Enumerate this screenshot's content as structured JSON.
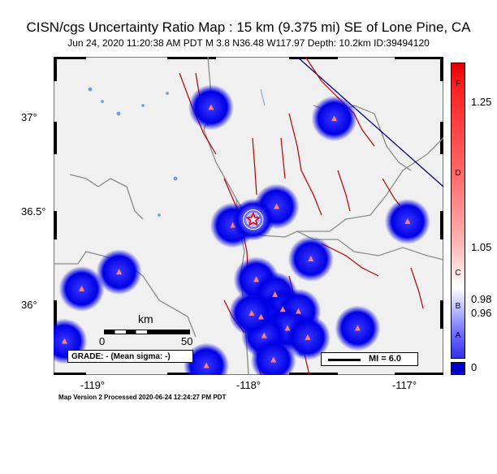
{
  "header": {
    "title": "CISN/cgs Uncertainty Ratio Map : 15 km (9.375 mi) SE of Lone Pine, CA",
    "subtitle": "Jun 24, 2020 11:20:38 AM PDT   M 3.8   N36.48 W117.97   Depth: 10.2km   ID:39494120"
  },
  "axes": {
    "x_ticks": [
      "-119°",
      "-118°",
      "-117°"
    ],
    "y_ticks": [
      "37°",
      "36.5°",
      "36°"
    ],
    "lon_range": [
      -119.25,
      -116.75
    ],
    "lat_range": [
      35.65,
      37.35
    ]
  },
  "scale": {
    "unit": "km",
    "start": "0",
    "end": "50"
  },
  "grade_text": "GRADE: - (Mean sigma: -)",
  "mi_legend": "MI = 6.0",
  "colorbar": {
    "letters": [
      "F",
      "D",
      "C",
      "B",
      "A"
    ],
    "values": [
      "1.25",
      "1.05",
      "0.98",
      "0.96",
      "0"
    ],
    "colors": {
      "high": "#dd0000",
      "mid": "#ffffff",
      "low": "#0000c8"
    }
  },
  "epicenter": {
    "lon": -117.97,
    "lat": 36.48,
    "marker": "star-icon"
  },
  "stations": [
    {
      "lon": -118.24,
      "lat": 37.08
    },
    {
      "lon": -117.45,
      "lat": 37.02
    },
    {
      "lon": -117.82,
      "lat": 36.55
    },
    {
      "lon": -118.1,
      "lat": 36.45
    },
    {
      "lon": -116.98,
      "lat": 36.47
    },
    {
      "lon": -117.6,
      "lat": 36.27
    },
    {
      "lon": -118.83,
      "lat": 36.2
    },
    {
      "lon": -119.07,
      "lat": 36.11
    },
    {
      "lon": -117.95,
      "lat": 36.16
    },
    {
      "lon": -117.83,
      "lat": 36.08
    },
    {
      "lon": -117.78,
      "lat": 36.0
    },
    {
      "lon": -117.68,
      "lat": 35.99
    },
    {
      "lon": -117.92,
      "lat": 35.96
    },
    {
      "lon": -117.75,
      "lat": 35.9
    },
    {
      "lon": -117.9,
      "lat": 35.86
    },
    {
      "lon": -117.62,
      "lat": 35.85
    },
    {
      "lon": -117.3,
      "lat": 35.9
    },
    {
      "lon": -119.18,
      "lat": 35.83
    },
    {
      "lon": -118.27,
      "lat": 35.7
    },
    {
      "lon": -117.84,
      "lat": 35.73
    },
    {
      "lon": -117.98,
      "lat": 35.98
    }
  ],
  "footer": "Map Version 2 Processed 2020-06-24 12:24:27 PM PDT"
}
